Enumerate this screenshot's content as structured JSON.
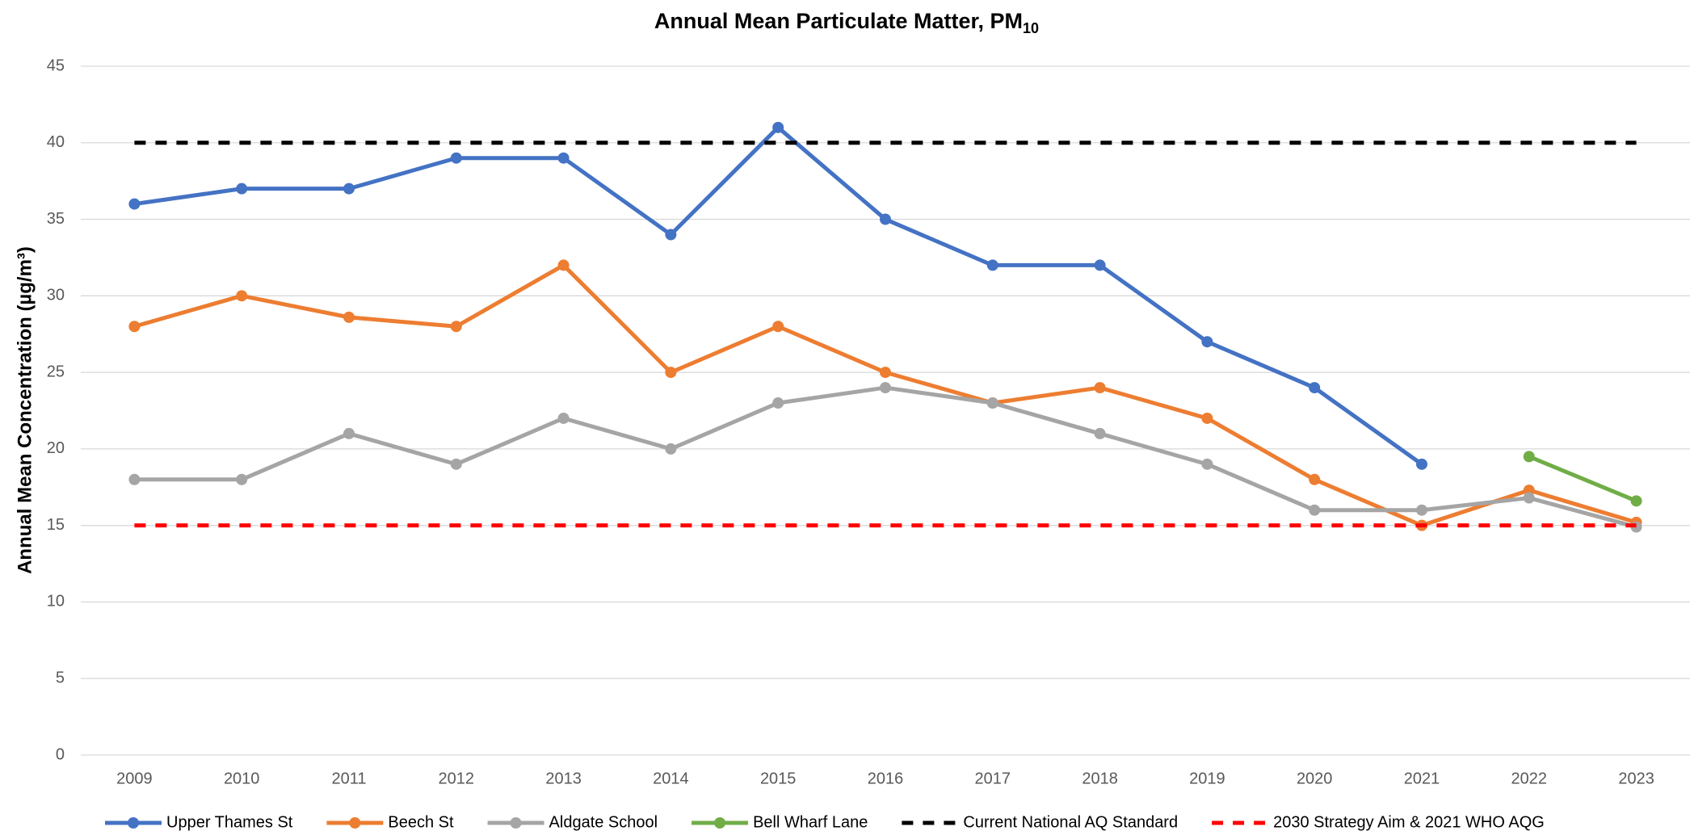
{
  "chart_data": {
    "type": "line",
    "title": "Annual Mean Particulate Matter, PM",
    "title_subscript": "10",
    "y_label": "Annual Mean Concentration (µg/m³)",
    "categories": [
      "2009",
      "2010",
      "2011",
      "2012",
      "2013",
      "2014",
      "2015",
      "2016",
      "2017",
      "2018",
      "2019",
      "2020",
      "2021",
      "2022",
      "2023"
    ],
    "series": [
      {
        "name": "Upper Thames St",
        "color": "#4472c4",
        "values": [
          36,
          37,
          37,
          39,
          39,
          34,
          41,
          35,
          32,
          32,
          27,
          24,
          19,
          null,
          null
        ]
      },
      {
        "name": "Beech St",
        "color": "#ed7d31",
        "values": [
          28,
          30,
          28.6,
          28,
          32,
          25,
          28,
          25,
          23,
          24,
          22,
          18,
          15,
          17.3,
          15.2
        ]
      },
      {
        "name": "Aldgate School",
        "color": "#a5a5a5",
        "values": [
          18,
          18,
          21,
          19,
          22,
          20,
          23,
          24,
          23,
          21,
          19,
          16,
          16,
          16.8,
          14.9
        ]
      },
      {
        "name": "Bell Wharf Lane",
        "color": "#70ad47",
        "values": [
          null,
          null,
          null,
          null,
          null,
          null,
          null,
          null,
          null,
          null,
          null,
          null,
          null,
          19.5,
          16.6
        ]
      },
      {
        "name": "Current National AQ Standard",
        "color": "#000000",
        "dashed": true,
        "values": [
          40,
          40,
          40,
          40,
          40,
          40,
          40,
          40,
          40,
          40,
          40,
          40,
          40,
          40,
          40
        ]
      },
      {
        "name": "2030 Strategy Aim & 2021 WHO AQG",
        "color": "#ff0000",
        "dashed": true,
        "values": [
          15,
          15,
          15,
          15,
          15,
          15,
          15,
          15,
          15,
          15,
          15,
          15,
          15,
          15,
          15
        ]
      }
    ],
    "ylim": [
      0,
      45
    ],
    "yticks": [
      0,
      5,
      10,
      15,
      20,
      25,
      30,
      35,
      40,
      45
    ],
    "grid": true,
    "legend": "bottom"
  }
}
